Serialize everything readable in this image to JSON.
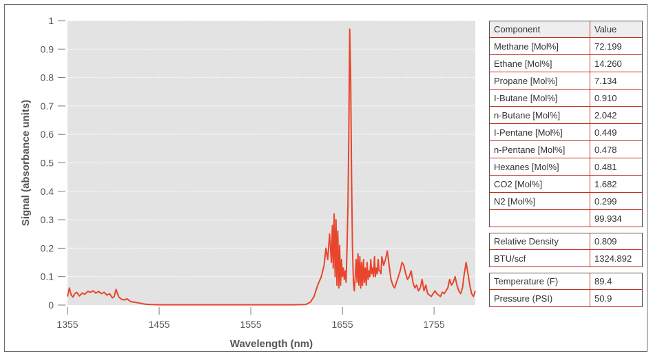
{
  "chart_data": {
    "type": "line",
    "title": "",
    "xlabel": "Wavelength (nm)",
    "ylabel": "Signal (absorbance units)",
    "xlim": [
      1355,
      1800
    ],
    "ylim": [
      0,
      1
    ],
    "xticks": [
      "1355",
      "1455",
      "1555",
      "1655",
      "1755"
    ],
    "yticks": [
      "0",
      "0.1",
      "0.2",
      "0.3",
      "0.4",
      "0.5",
      "0.6",
      "0.7",
      "0.8",
      "0.9",
      "1"
    ],
    "grid": "horizontal dotted",
    "plot_background": "#e3e3e3",
    "series": [
      {
        "color": "#e8452c",
        "x": [
          1355,
          1357,
          1359,
          1361,
          1363,
          1365,
          1368,
          1371,
          1374,
          1377,
          1380,
          1383,
          1386,
          1389,
          1392,
          1395,
          1398,
          1401,
          1404,
          1406,
          1408,
          1411,
          1414,
          1417,
          1420,
          1424,
          1428,
          1432,
          1436,
          1440,
          1445,
          1455,
          1500,
          1555,
          1600,
          1615,
          1620,
          1624,
          1628,
          1632,
          1635,
          1637,
          1639,
          1641,
          1643,
          1644,
          1645,
          1646,
          1647,
          1648,
          1649,
          1650,
          1651,
          1652,
          1653,
          1654,
          1655,
          1656,
          1657,
          1658,
          1659,
          1660,
          1661,
          1662,
          1663,
          1664,
          1665,
          1666,
          1667,
          1668,
          1669,
          1670,
          1671,
          1672,
          1673,
          1674,
          1675,
          1676,
          1677,
          1678,
          1679,
          1680,
          1681,
          1682,
          1683,
          1684,
          1685,
          1686,
          1687,
          1688,
          1689,
          1690,
          1691,
          1692,
          1693,
          1694,
          1695,
          1696,
          1697,
          1698,
          1700,
          1702,
          1704,
          1706,
          1708,
          1710,
          1712,
          1714,
          1716,
          1718,
          1720,
          1722,
          1724,
          1726,
          1728,
          1730,
          1732,
          1734,
          1736,
          1738,
          1740,
          1742,
          1744,
          1746,
          1748,
          1750,
          1752,
          1754,
          1756,
          1758,
          1760,
          1762,
          1764,
          1766,
          1768,
          1770,
          1772,
          1774,
          1776,
          1778,
          1780,
          1782,
          1784,
          1786,
          1788,
          1790,
          1792,
          1794,
          1796,
          1798,
          1800
        ],
        "y": [
          0.03,
          0.06,
          0.035,
          0.028,
          0.04,
          0.045,
          0.032,
          0.042,
          0.038,
          0.048,
          0.045,
          0.05,
          0.042,
          0.048,
          0.04,
          0.045,
          0.035,
          0.04,
          0.025,
          0.03,
          0.055,
          0.028,
          0.02,
          0.018,
          0.022,
          0.012,
          0.01,
          0.008,
          0.005,
          0.003,
          0.002,
          0.001,
          0.001,
          0.001,
          0.001,
          0.002,
          0.01,
          0.03,
          0.07,
          0.1,
          0.14,
          0.2,
          0.16,
          0.25,
          0.15,
          0.28,
          0.13,
          0.32,
          0.1,
          0.3,
          0.07,
          0.26,
          0.06,
          0.21,
          0.07,
          0.16,
          0.1,
          0.13,
          0.09,
          0.12,
          0.08,
          0.2,
          0.35,
          0.6,
          0.97,
          0.8,
          0.45,
          0.2,
          0.08,
          0.05,
          0.1,
          0.16,
          0.08,
          0.18,
          0.07,
          0.17,
          0.06,
          0.15,
          0.07,
          0.16,
          0.08,
          0.13,
          0.07,
          0.15,
          0.09,
          0.12,
          0.1,
          0.16,
          0.11,
          0.13,
          0.1,
          0.17,
          0.1,
          0.13,
          0.11,
          0.16,
          0.12,
          0.12,
          0.11,
          0.17,
          0.14,
          0.16,
          0.19,
          0.14,
          0.09,
          0.07,
          0.06,
          0.08,
          0.1,
          0.12,
          0.15,
          0.14,
          0.11,
          0.09,
          0.1,
          0.12,
          0.08,
          0.06,
          0.07,
          0.05,
          0.06,
          0.09,
          0.05,
          0.07,
          0.04,
          0.035,
          0.03,
          0.04,
          0.05,
          0.04,
          0.035,
          0.03,
          0.045,
          0.04,
          0.05,
          0.06,
          0.09,
          0.07,
          0.08,
          0.1,
          0.07,
          0.05,
          0.04,
          0.06,
          0.11,
          0.15,
          0.11,
          0.07,
          0.04,
          0.03,
          0.05
        ]
      }
    ]
  },
  "table": {
    "headers": [
      "Component",
      "Value"
    ],
    "rows": [
      [
        "Methane [Mol%]",
        "72.199"
      ],
      [
        "Ethane [Mol%]",
        "14.260"
      ],
      [
        "Propane [Mol%]",
        "7.134"
      ],
      [
        "I-Butane [Mol%]",
        "0.910"
      ],
      [
        "n-Butane [Mol%]",
        "2.042"
      ],
      [
        "I-Pentane [Mol%]",
        "0.449"
      ],
      [
        "n-Pentane [Mol%]",
        "0.478"
      ],
      [
        "Hexanes [Mol%]",
        "0.481"
      ],
      [
        "CO2 [Mol%]",
        "1.682"
      ],
      [
        "N2 [Mol%]",
        "0.299"
      ],
      [
        "",
        "99.934"
      ]
    ],
    "rows2": [
      [
        "Relative Density",
        "0.809"
      ],
      [
        "BTU/scf",
        "1324.892"
      ]
    ],
    "rows3": [
      [
        "Temperature (F)",
        "89.4"
      ],
      [
        "Pressure (PSI)",
        "50.9"
      ]
    ]
  }
}
